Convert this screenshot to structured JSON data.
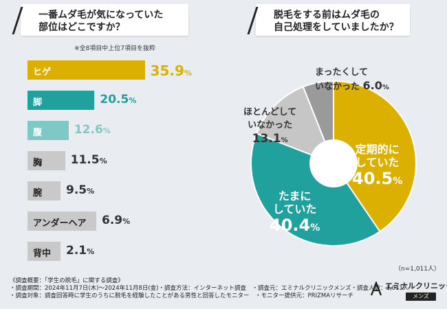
{
  "left_title": [
    "一番ムダ毛が気になっていた",
    "部位はどこですか？"
  ],
  "right_title": [
    "脱毛をする前はムダ毛の",
    "自己処理をしていましたか？"
  ],
  "note": "※全8項目中上位7項目を抜粋",
  "sample_size": "（n=1,011人）",
  "footer_lines": [
    "《調査概要：「学生の脱毛」に関する調査》",
    "・調査期間：2024年11月7日(木)～2024年11月8日(金)・調査方法：インターネット調査　・調査元：エミナルクリニックメンズ・調査人数：1,011人",
    "・調査対象：調査回答時に学生のうちに脱毛を経験したことがある男性と回答したモニター　・モニター提供元：PRIZMAリサーチ"
  ],
  "logo": {
    "name": "エミナルクリニック",
    "sub": "メンズ"
  },
  "colors": {
    "yellow": "#dcb000",
    "teal": "#20a19d",
    "light_teal": "#7ec8c5",
    "grey": "#c6c6c6",
    "dark_grey": "#9a9a9a"
  },
  "chart_data": [
    {
      "type": "bar",
      "orientation": "horizontal",
      "title": "一番ムダ毛が気になっていた部位はどこですか？",
      "categories": [
        "ヒゲ",
        "脚",
        "腹",
        "胸",
        "腕",
        "アンダーヘア",
        "背中"
      ],
      "values": [
        35.9,
        20.5,
        12.6,
        11.5,
        9.5,
        6.9,
        2.1
      ],
      "unit": "%",
      "bar_colors": [
        "#dcb000",
        "#20a19d",
        "#7ec8c5",
        "#c9c9c9",
        "#c9c9c9",
        "#c9c9c9",
        "#c9c9c9"
      ],
      "label_colors": [
        "#ffffff",
        "#ffffff",
        "#ffffff",
        "#222222",
        "#222222",
        "#222222",
        "#222222"
      ],
      "value_colors": [
        "#dcb000",
        "#20a19d",
        "#7ec8c5",
        "#333333",
        "#333333",
        "#333333",
        "#333333"
      ]
    },
    {
      "type": "pie",
      "style": "donut",
      "title": "脱毛をする前はムダ毛の自己処理をしていましたか？",
      "slices": [
        {
          "label": [
            "定期的に",
            "していた"
          ],
          "value": 40.5,
          "color": "#dcb000"
        },
        {
          "label": [
            "たまに",
            "していた"
          ],
          "value": 40.4,
          "color": "#20a19d"
        },
        {
          "label": [
            "ほとんどして",
            "いなかった"
          ],
          "value": 13.1,
          "color": "#c6c6c6"
        },
        {
          "label": [
            "まったくして",
            "いなかった"
          ],
          "value": 6.0,
          "color": "#9a9a9a"
        }
      ],
      "unit": "%"
    }
  ]
}
